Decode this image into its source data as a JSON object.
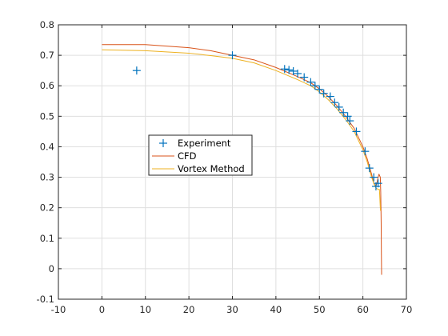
{
  "chart_data": {
    "type": "scatter",
    "title": "",
    "xlabel": "",
    "ylabel": "",
    "xlim": [
      -10,
      70
    ],
    "ylim": [
      -0.1,
      0.8
    ],
    "x_ticks": [
      -10,
      0,
      10,
      20,
      30,
      40,
      50,
      60,
      70
    ],
    "y_ticks": [
      -0.1,
      0,
      0.1,
      0.2,
      0.3,
      0.4,
      0.5,
      0.6,
      0.7,
      0.8
    ],
    "grid": true,
    "legend_position": "center-left",
    "series": [
      {
        "name": "Experiment",
        "kind": "marker",
        "marker": "+",
        "color": "#0072bd",
        "x": [
          8,
          30,
          42,
          43,
          44,
          45,
          46.5,
          48,
          49,
          50,
          51,
          52.5,
          53.5,
          54.5,
          55.5,
          56.5,
          57,
          58.5,
          60.5,
          61.5,
          62.5,
          63,
          63.5
        ],
        "y": [
          0.65,
          0.7,
          0.655,
          0.652,
          0.648,
          0.64,
          0.628,
          0.612,
          0.6,
          0.588,
          0.575,
          0.565,
          0.545,
          0.53,
          0.512,
          0.5,
          0.485,
          0.45,
          0.385,
          0.33,
          0.3,
          0.27,
          0.28
        ]
      },
      {
        "name": "CFD",
        "kind": "line",
        "color": "#d95319",
        "x": [
          0,
          10,
          20,
          25,
          30,
          35,
          40,
          45,
          48,
          50,
          52,
          54,
          56,
          58,
          60,
          61,
          62,
          62.5,
          63,
          63.2,
          63.5,
          63.7,
          64,
          64.1,
          64.15,
          64.2,
          64.25,
          64.3
        ],
        "y": [
          0.735,
          0.735,
          0.725,
          0.715,
          0.7,
          0.685,
          0.66,
          0.63,
          0.61,
          0.59,
          0.565,
          0.535,
          0.5,
          0.46,
          0.4,
          0.36,
          0.31,
          0.28,
          0.27,
          0.28,
          0.3,
          0.31,
          0.3,
          0.25,
          0.2,
          0.15,
          0.05,
          -0.02
        ]
      },
      {
        "name": "Vortex Method",
        "kind": "line",
        "color": "#edb120",
        "x": [
          0,
          10,
          20,
          25,
          30,
          35,
          40,
          45,
          48,
          50,
          52,
          54,
          56,
          58,
          60,
          61,
          62,
          62.5,
          63,
          63.5,
          63.8,
          64,
          64.05
        ],
        "y": [
          0.718,
          0.715,
          0.707,
          0.699,
          0.69,
          0.675,
          0.65,
          0.62,
          0.6,
          0.58,
          0.555,
          0.525,
          0.49,
          0.45,
          0.39,
          0.35,
          0.3,
          0.28,
          0.265,
          0.26,
          0.26,
          0.2,
          0.19
        ]
      }
    ]
  }
}
